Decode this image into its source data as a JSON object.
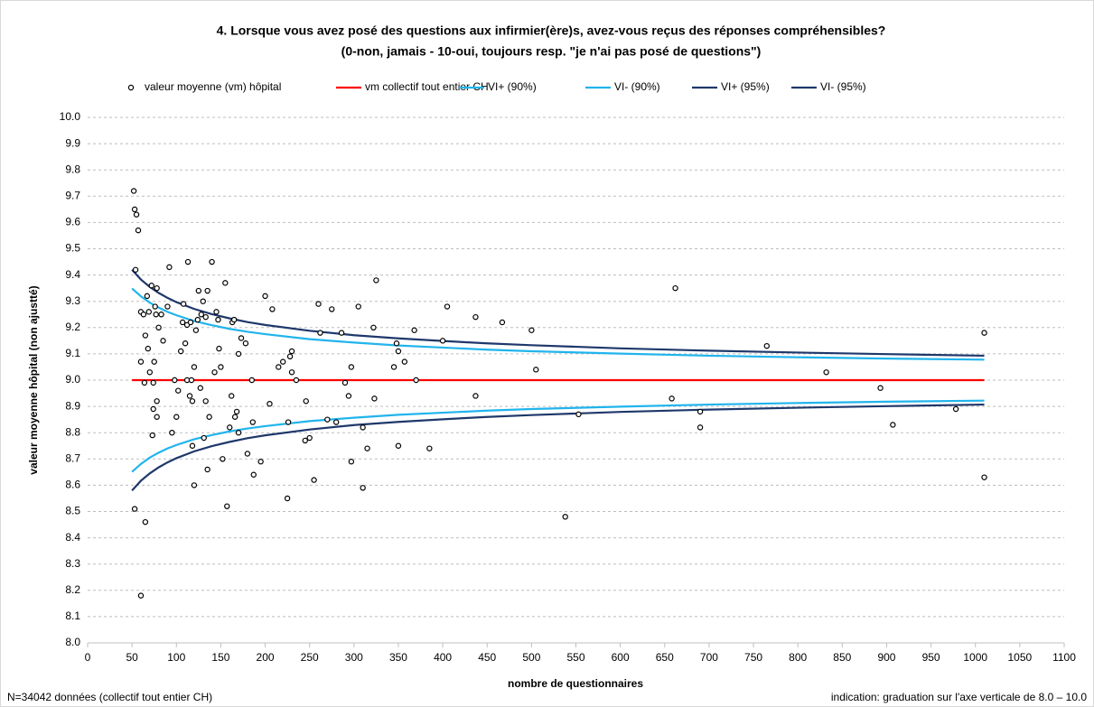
{
  "chart_data": {
    "type": "scatter",
    "title": "4. Lorsque vous avez posé des questions aux infirmier(ère)s, avez-vous reçus des réponses compréhensibles?",
    "subtitle": "(0-non, jamais - 10-oui, toujours resp. \"je n'ai pas posé de questions\")",
    "x_label": "nombre de questionnaires",
    "y_label": "valeur moyenne hôpital (non ajustté)",
    "footnote_left": "N=34042 données (collectif tout entier CH)",
    "footnote_right": "indication: graduation sur l'axe verticale de 8.0 – 10.0",
    "xlim": [
      0,
      1100
    ],
    "xticks": [
      0,
      50,
      100,
      150,
      200,
      250,
      300,
      350,
      400,
      450,
      500,
      550,
      600,
      650,
      700,
      750,
      800,
      850,
      900,
      950,
      1000,
      1050,
      1100
    ],
    "ylim": [
      8,
      10
    ],
    "yticks": [
      {
        "value": 8,
        "label": "8.0"
      },
      8.1,
      8.2,
      8.3,
      8.4,
      8.5,
      8.6,
      8.7,
      8.8,
      8.9,
      {
        "value": 9,
        "label": "9.0"
      },
      9.1,
      9.2,
      9.3,
      9.4,
      9.5,
      9.6,
      9.7,
      9.8,
      9.9,
      {
        "value": 10,
        "label": "10.0"
      }
    ],
    "grid": true,
    "legend": "top",
    "series": [
      {
        "name": "valeur moyenne (vm) hôpital",
        "color": "#000000",
        "style": "markers",
        "x": [
          52,
          53,
          55,
          57,
          54,
          53,
          60,
          60,
          60,
          63,
          64,
          65,
          65,
          67,
          68,
          69,
          70,
          72,
          73,
          74,
          74,
          75,
          76,
          77,
          78,
          78,
          78,
          80,
          83,
          85,
          90,
          92,
          95,
          98,
          100,
          102,
          105,
          107,
          108,
          110,
          112,
          112,
          113,
          115,
          116,
          117,
          118,
          118,
          120,
          120,
          122,
          124,
          125,
          127,
          128,
          130,
          131,
          133,
          133,
          135,
          135,
          137,
          140,
          143,
          145,
          147,
          148,
          150,
          152,
          155,
          157,
          160,
          162,
          163,
          165,
          166,
          168,
          170,
          170,
          173,
          178,
          180,
          185,
          186,
          187,
          195,
          200,
          205,
          208,
          215,
          220,
          225,
          226,
          228,
          230,
          230,
          235,
          245,
          246,
          250,
          255,
          260,
          262,
          270,
          275,
          280,
          286,
          290,
          294,
          297,
          297,
          305,
          310,
          310,
          315,
          322,
          323,
          325,
          345,
          348,
          350,
          350,
          357,
          368,
          370,
          385,
          400,
          405,
          437,
          437,
          467,
          500,
          505,
          538,
          553,
          658,
          662,
          690,
          690,
          765,
          832,
          893,
          907,
          978,
          1010,
          1010
        ],
        "values": [
          9.72,
          9.65,
          9.63,
          9.57,
          9.42,
          8.51,
          9.26,
          9.07,
          8.18,
          9.25,
          8.99,
          9.17,
          8.46,
          9.32,
          9.12,
          9.26,
          9.03,
          9.36,
          8.79,
          8.89,
          8.99,
          9.07,
          9.28,
          9.25,
          9.35,
          8.86,
          8.92,
          9.2,
          9.25,
          9.15,
          9.28,
          9.43,
          8.8,
          9.0,
          8.86,
          8.96,
          9.11,
          9.22,
          9.29,
          9.14,
          9.21,
          9.0,
          9.45,
          8.94,
          9.22,
          9.0,
          8.92,
          8.75,
          8.6,
          9.05,
          9.19,
          9.23,
          9.34,
          8.97,
          9.25,
          9.3,
          8.78,
          9.24,
          8.92,
          9.34,
          8.66,
          8.86,
          9.45,
          9.03,
          9.26,
          9.23,
          9.12,
          9.05,
          8.7,
          9.37,
          8.52,
          8.82,
          8.94,
          9.22,
          9.23,
          8.86,
          8.88,
          9.1,
          8.8,
          9.16,
          9.14,
          8.72,
          9.0,
          8.84,
          8.64,
          8.69,
          9.32,
          8.91,
          9.27,
          9.05,
          9.07,
          8.55,
          8.84,
          9.09,
          9.11,
          9.03,
          9.0,
          8.77,
          8.92,
          8.78,
          8.62,
          9.29,
          9.18,
          8.85,
          9.27,
          8.84,
          9.18,
          8.99,
          8.94,
          9.05,
          8.69,
          9.28,
          8.82,
          8.59,
          8.74,
          9.2,
          8.93,
          9.38,
          9.05,
          9.14,
          8.75,
          9.11,
          9.07,
          9.19,
          9.0,
          8.74,
          9.15,
          9.28,
          9.24,
          8.94,
          9.22,
          9.19,
          9.04,
          8.48,
          8.87,
          8.93,
          9.35,
          8.88,
          8.82,
          9.13,
          9.03,
          8.97,
          8.83,
          8.89,
          9.18,
          8.63
        ]
      },
      {
        "name": "vm collectif tout entier CH",
        "color": "#ff0000",
        "style": "line",
        "x": [
          50,
          1010
        ],
        "values": [
          9,
          9
        ]
      },
      {
        "name": "VI+ (90%)",
        "color": "#21b4ec",
        "style": "line",
        "x": [
          50,
          60,
          70,
          80,
          90,
          100,
          120,
          140,
          160,
          180,
          200,
          250,
          300,
          350,
          400,
          450,
          500,
          600,
          700,
          800,
          900,
          1010
        ],
        "values": [
          9.349,
          9.319,
          9.295,
          9.276,
          9.26,
          9.247,
          9.225,
          9.209,
          9.195,
          9.184,
          9.175,
          9.156,
          9.143,
          9.132,
          9.124,
          9.116,
          9.11,
          9.101,
          9.093,
          9.087,
          9.082,
          9.078
        ]
      },
      {
        "name": "VI- (90%)",
        "color": "#21b4ec",
        "style": "line",
        "x": [
          50,
          60,
          70,
          80,
          90,
          100,
          120,
          140,
          160,
          180,
          200,
          250,
          300,
          350,
          400,
          450,
          500,
          600,
          700,
          800,
          900,
          1010
        ],
        "values": [
          8.651,
          8.681,
          8.705,
          8.724,
          8.74,
          8.753,
          8.775,
          8.791,
          8.805,
          8.816,
          8.825,
          8.844,
          8.857,
          8.868,
          8.876,
          8.884,
          8.89,
          8.899,
          8.907,
          8.913,
          8.918,
          8.922
        ]
      },
      {
        "name": "VI+ (95%)",
        "color": "#1f386b",
        "style": "line",
        "x": [
          50,
          60,
          70,
          80,
          90,
          100,
          120,
          140,
          160,
          180,
          200,
          250,
          300,
          350,
          400,
          450,
          500,
          600,
          700,
          800,
          900,
          1010
        ],
        "values": [
          9.42,
          9.383,
          9.355,
          9.332,
          9.313,
          9.297,
          9.271,
          9.251,
          9.235,
          9.221,
          9.21,
          9.188,
          9.171,
          9.159,
          9.149,
          9.14,
          9.133,
          9.121,
          9.112,
          9.105,
          9.099,
          9.093
        ]
      },
      {
        "name": "VI- (95%)",
        "color": "#1f386b",
        "style": "line",
        "x": [
          50,
          60,
          70,
          80,
          90,
          100,
          120,
          140,
          160,
          180,
          200,
          250,
          300,
          350,
          400,
          450,
          500,
          600,
          700,
          800,
          900,
          1010
        ],
        "values": [
          8.58,
          8.617,
          8.645,
          8.668,
          8.687,
          8.703,
          8.729,
          8.749,
          8.765,
          8.779,
          8.79,
          8.812,
          8.829,
          8.841,
          8.851,
          8.86,
          8.867,
          8.879,
          8.888,
          8.895,
          8.901,
          8.907
        ]
      }
    ]
  }
}
